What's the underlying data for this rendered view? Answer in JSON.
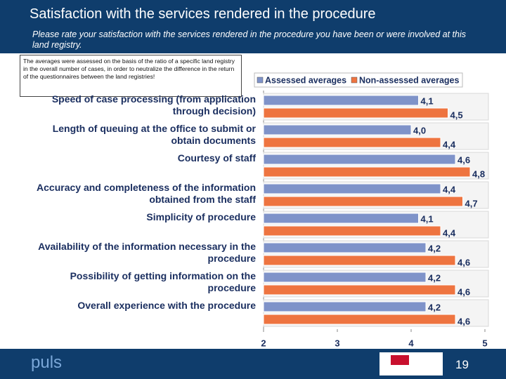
{
  "header": {
    "title": "Satisfaction with the services rendered in the procedure",
    "subtitle": "Please rate your satisfaction with the services rendered in the procedure you have been or were involved at this land registry."
  },
  "note": "The averages were assessed on the basis of the ratio of a specific land registry in the overall number of cases, in order to neutralize the difference in the return of the questionnaires between the land registries!",
  "chart_data": {
    "type": "hbar",
    "categories": [
      "Speed of case processing (from application through decision)",
      "Length of queuing at the office to submit or obtain documents",
      "Courtesy of staff",
      "Accuracy and completeness of the information obtained from the staff",
      "Simplicity of procedure",
      "Availability of the information necessary in the procedure",
      "Possibility of getting information on the procedure",
      "Overall experience with the procedure"
    ],
    "series": [
      {
        "name": "Assessed averages",
        "color": "#7f93c9",
        "values": [
          4.1,
          4.0,
          4.6,
          4.4,
          4.1,
          4.2,
          4.2,
          4.2
        ],
        "value_labels": [
          "4,1",
          "4,0",
          "4,6",
          "4,4",
          "4,1",
          "4,2",
          "4,2",
          "4,2"
        ]
      },
      {
        "name": "Non-assessed averages",
        "color": "#ee7440",
        "values": [
          4.5,
          4.4,
          4.8,
          4.7,
          4.4,
          4.6,
          4.6,
          4.6
        ],
        "value_labels": [
          "4,5",
          "4,4",
          "4,8",
          "4,7",
          "4,4",
          "4,6",
          "4,6",
          "4,6"
        ]
      }
    ],
    "xlim": [
      2,
      5
    ],
    "xticks": [
      2,
      3,
      4,
      5
    ],
    "legend": "top"
  },
  "footer": {
    "logo": "puls",
    "page_number": "19"
  }
}
